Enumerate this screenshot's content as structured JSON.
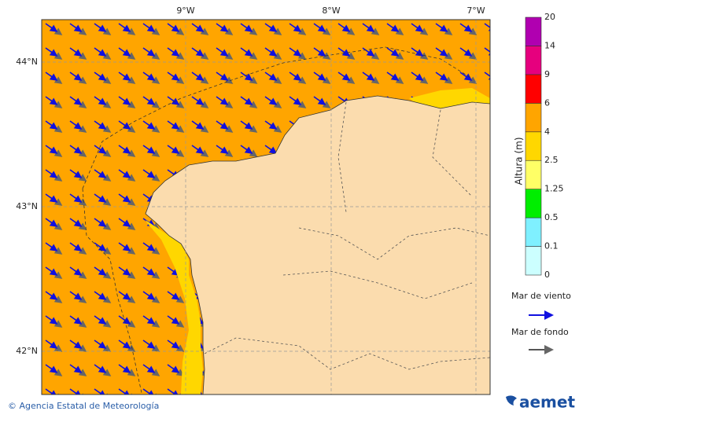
{
  "map": {
    "lon_labels": [
      "9°W",
      "8°W",
      "7°W"
    ],
    "lat_labels": [
      "44°N",
      "43°N",
      "42°N"
    ],
    "colorbar": {
      "title": "Altura (m)",
      "labels": [
        "0",
        "0.1",
        "0.5",
        "1.25",
        "2.5",
        "4",
        "6",
        "9",
        "14",
        "20"
      ],
      "colors": [
        "#ccffff",
        "#7ff0ff",
        "#00ee00",
        "#ffff66",
        "#ffd700",
        "#ffa500",
        "#ff0000",
        "#e6007e",
        "#b000b0"
      ]
    },
    "legend": {
      "wind_sea": "Mar de viento",
      "swell": "Mar de fondo"
    },
    "footer": "© Agencia Estatal de Meteorología",
    "logo": "aemet"
  }
}
